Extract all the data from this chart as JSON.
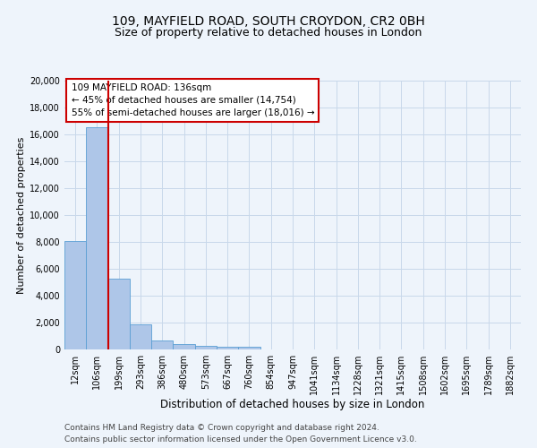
{
  "title1": "109, MAYFIELD ROAD, SOUTH CROYDON, CR2 0BH",
  "title2": "Size of property relative to detached houses in London",
  "xlabel": "Distribution of detached houses by size in London",
  "ylabel": "Number of detached properties",
  "categories": [
    "12sqm",
    "106sqm",
    "199sqm",
    "293sqm",
    "386sqm",
    "480sqm",
    "573sqm",
    "667sqm",
    "760sqm",
    "854sqm",
    "947sqm",
    "1041sqm",
    "1134sqm",
    "1228sqm",
    "1321sqm",
    "1415sqm",
    "1508sqm",
    "1602sqm",
    "1695sqm",
    "1789sqm",
    "1882sqm"
  ],
  "values": [
    8100,
    16500,
    5300,
    1850,
    700,
    380,
    300,
    220,
    200,
    0,
    0,
    0,
    0,
    0,
    0,
    0,
    0,
    0,
    0,
    0,
    0
  ],
  "bar_color": "#aec6e8",
  "bar_edge_color": "#5a9fd4",
  "grid_color": "#c8d8ea",
  "bg_color": "#eef4fb",
  "vline_x": 1.5,
  "vline_color": "#cc0000",
  "annotation_title": "109 MAYFIELD ROAD: 136sqm",
  "annotation_line1": "← 45% of detached houses are smaller (14,754)",
  "annotation_line2": "55% of semi-detached houses are larger (18,016) →",
  "annotation_box_color": "#ffffff",
  "annotation_box_edge": "#cc0000",
  "ylim": [
    0,
    20000
  ],
  "yticks": [
    0,
    2000,
    4000,
    6000,
    8000,
    10000,
    12000,
    14000,
    16000,
    18000,
    20000
  ],
  "footer1": "Contains HM Land Registry data © Crown copyright and database right 2024.",
  "footer2": "Contains public sector information licensed under the Open Government Licence v3.0.",
  "title1_fontsize": 10,
  "title2_fontsize": 9,
  "xlabel_fontsize": 8.5,
  "ylabel_fontsize": 8,
  "tick_fontsize": 7,
  "footer_fontsize": 6.5,
  "ann_fontsize": 7.5
}
